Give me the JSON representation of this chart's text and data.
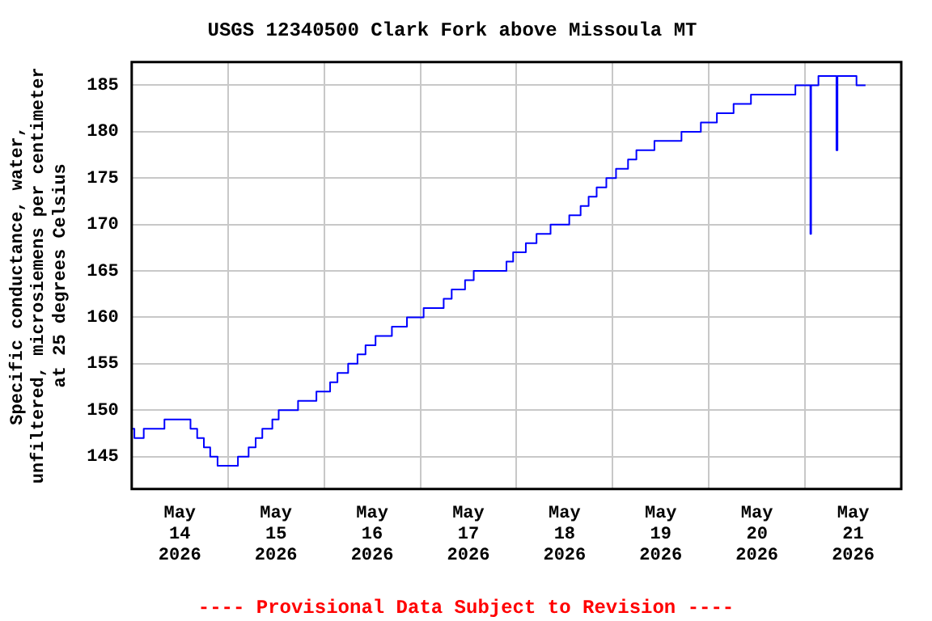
{
  "chart_data": {
    "type": "step",
    "title": "USGS 12340500 Clark Fork above Missoula MT",
    "ylabel": "Specific conductance, water,\nunfiltered, microsiemens per centimeter\nat 25 degrees Celsius",
    "annotations": [
      "---- Provisional Data Subject to Revision ----"
    ],
    "xlim": [
      "2026-05-14T00:00",
      "2026-05-22T00:00"
    ],
    "xticks": [
      {
        "value": "2026-05-14T00:00",
        "label": null
      },
      {
        "value": "2026-05-14T12:00",
        "label": "May 14 2026"
      },
      {
        "value": "2026-05-15T00:00",
        "label": null
      },
      {
        "value": "2026-05-15T12:00",
        "label": "May 15 2026"
      },
      {
        "value": "2026-05-16T00:00",
        "label": null
      },
      {
        "value": "2026-05-16T12:00",
        "label": "May 16 2026"
      },
      {
        "value": "2026-05-17T00:00",
        "label": null
      },
      {
        "value": "2026-05-17T12:00",
        "label": "May 17 2026"
      },
      {
        "value": "2026-05-18T00:00",
        "label": null
      },
      {
        "value": "2026-05-18T12:00",
        "label": "May 18 2026"
      },
      {
        "value": "2026-05-19T00:00",
        "label": null
      },
      {
        "value": "2026-05-19T12:00",
        "label": "May 19 2026"
      },
      {
        "value": "2026-05-20T00:00",
        "label": null
      },
      {
        "value": "2026-05-20T12:00",
        "label": "May 20 2026"
      },
      {
        "value": "2026-05-21T00:00",
        "label": null
      },
      {
        "value": "2026-05-21T12:00",
        "label": "May 21 2026"
      },
      {
        "value": "2026-05-22T00:00",
        "label": null
      }
    ],
    "ylim": [
      141.5,
      187.5
    ],
    "yticks": [
      145,
      150,
      155,
      160,
      165,
      170,
      175,
      180,
      185
    ],
    "grid": true,
    "x": [
      "2026-05-14T00:00",
      "2026-05-14T00:40",
      "2026-05-14T03:00",
      "2026-05-14T08:10",
      "2026-05-14T14:40",
      "2026-05-14T16:20",
      "2026-05-14T18:00",
      "2026-05-14T19:35",
      "2026-05-14T21:25",
      "2026-05-15T02:30",
      "2026-05-15T05:10",
      "2026-05-15T06:55",
      "2026-05-15T08:35",
      "2026-05-15T11:05",
      "2026-05-15T12:40",
      "2026-05-15T17:30",
      "2026-05-15T22:05",
      "2026-05-16T01:30",
      "2026-05-16T03:20",
      "2026-05-16T06:00",
      "2026-05-16T08:20",
      "2026-05-16T10:20",
      "2026-05-16T12:50",
      "2026-05-16T16:55",
      "2026-05-16T20:40",
      "2026-05-17T00:50",
      "2026-05-17T05:50",
      "2026-05-17T07:50",
      "2026-05-17T11:10",
      "2026-05-17T13:20",
      "2026-05-17T21:30",
      "2026-05-17T23:10",
      "2026-05-18T02:20",
      "2026-05-18T05:00",
      "2026-05-18T08:30",
      "2026-05-18T13:10",
      "2026-05-18T16:00",
      "2026-05-18T18:00",
      "2026-05-18T20:00",
      "2026-05-18T22:25",
      "2026-05-19T00:50",
      "2026-05-19T03:50",
      "2026-05-19T05:55",
      "2026-05-19T10:25",
      "2026-05-19T17:10",
      "2026-05-19T22:00",
      "2026-05-20T02:00",
      "2026-05-20T06:10",
      "2026-05-20T10:30",
      "2026-05-20T21:35",
      "2026-05-21T01:20",
      "2026-05-21T01:30",
      "2026-05-21T03:20",
      "2026-05-21T07:50",
      "2026-05-21T08:05",
      "2026-05-21T12:50",
      "2026-05-21T15:05"
    ],
    "series": [
      {
        "color": "#0000ff",
        "values": [
          148,
          147,
          148,
          149,
          148,
          147,
          146,
          145,
          144,
          145,
          146,
          147,
          148,
          149,
          150,
          151,
          152,
          153,
          154,
          155,
          156,
          157,
          158,
          159,
          160,
          161,
          162,
          163,
          164,
          165,
          166,
          167,
          168,
          169,
          170,
          171,
          172,
          173,
          174,
          175,
          176,
          177,
          178,
          179,
          180,
          181,
          182,
          183,
          184,
          185,
          169,
          185,
          186,
          178,
          186,
          185,
          185
        ]
      }
    ]
  }
}
